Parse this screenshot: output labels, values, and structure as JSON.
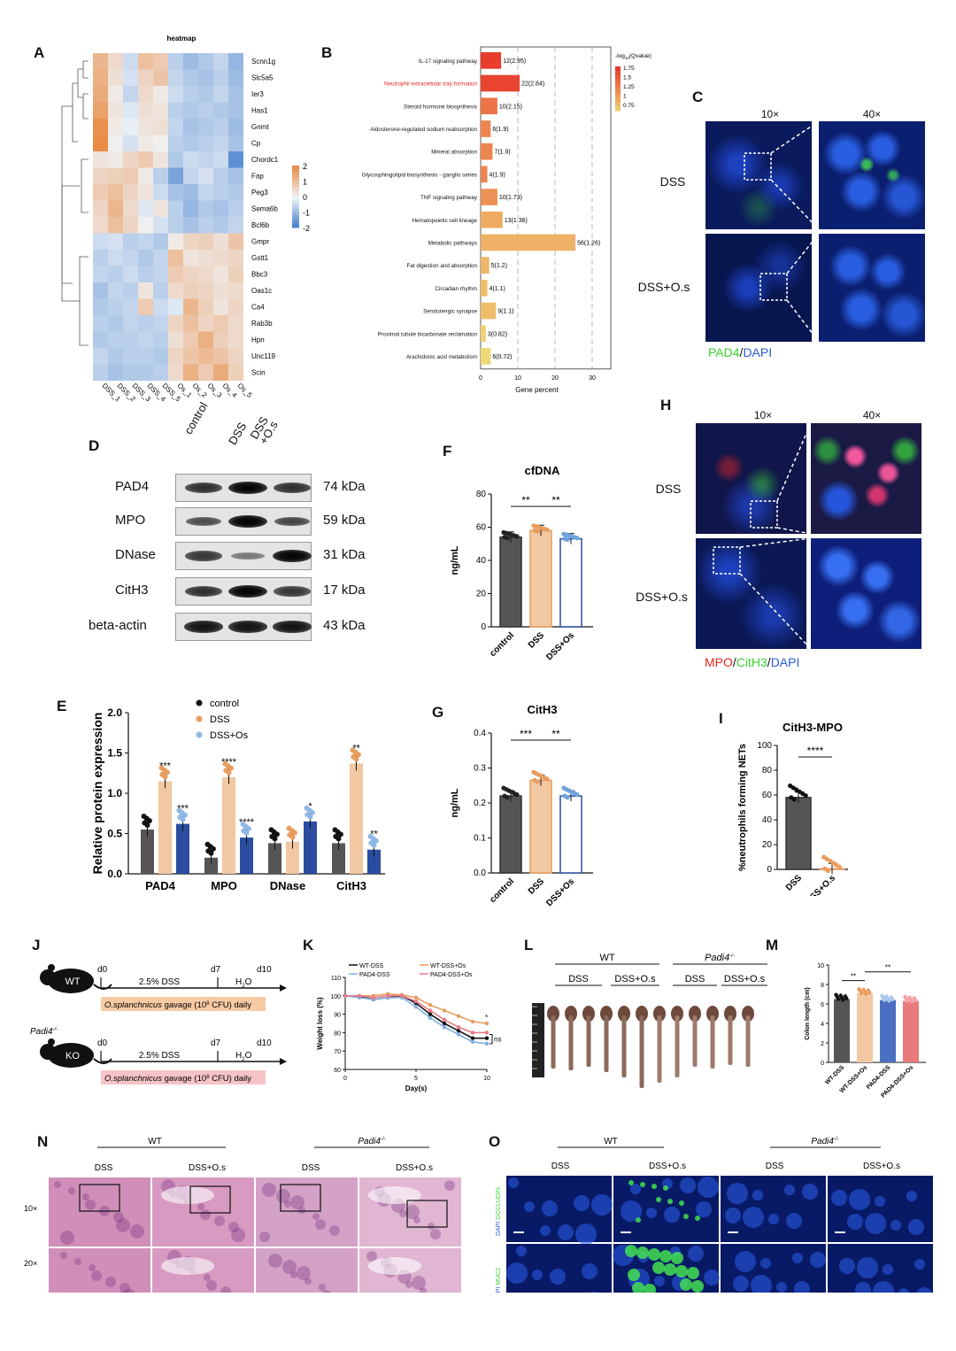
{
  "panels": {
    "A": "A",
    "B": "B",
    "C": "C",
    "D": "D",
    "E": "E",
    "F": "F",
    "G": "G",
    "H": "H",
    "I": "I",
    "J": "J",
    "K": "K",
    "L": "L",
    "M": "M",
    "N": "N",
    "O": "O"
  },
  "heatmap": {
    "title": "heatmap",
    "genes": [
      "Scnn1g",
      "Slc5a5",
      "Ier3",
      "Has1",
      "Gnmt",
      "Cp",
      "Chordc1",
      "Fap",
      "Peg3",
      "Sema6b",
      "Bcl6b",
      "Gmpr",
      "Gstt1",
      "Bbc3",
      "Oas1c",
      "Ca4",
      "Rab3b",
      "Hpn",
      "Unc119",
      "Scin"
    ],
    "samples": [
      "DSS_1",
      "DSS_2",
      "DSS_3",
      "DSS_4",
      "DSS_5",
      "Os_1",
      "Os_2",
      "Os_3",
      "Os_4",
      "Os_5"
    ],
    "legend_ticks": [
      "2",
      "1",
      "0",
      "-1",
      "-2"
    ],
    "values": [
      [
        1.2,
        0.5,
        -0.4,
        1.0,
        0.8,
        -0.6,
        -0.9,
        -0.7,
        -0.5,
        -1.0
      ],
      [
        1.3,
        0.4,
        -0.3,
        0.6,
        0.9,
        -0.5,
        -0.7,
        -0.8,
        -0.6,
        -0.9
      ],
      [
        1.4,
        0.2,
        -0.5,
        0.5,
        0.2,
        -0.4,
        -0.6,
        -0.7,
        -0.5,
        -0.8
      ],
      [
        1.6,
        0.3,
        -0.2,
        0.4,
        0.3,
        -0.6,
        -0.7,
        -0.6,
        -0.7,
        -0.8
      ],
      [
        1.9,
        0.2,
        -0.1,
        0.3,
        0.4,
        -0.5,
        -0.8,
        -0.7,
        -0.6,
        -0.9
      ],
      [
        2.0,
        0.1,
        -0.3,
        0.2,
        0.1,
        -0.6,
        -0.7,
        -0.6,
        -0.5,
        -0.8
      ],
      [
        0.3,
        0.2,
        0.6,
        0.8,
        0.3,
        -0.7,
        -0.4,
        -0.5,
        -0.4,
        -1.6
      ],
      [
        0.6,
        0.7,
        0.8,
        0.2,
        -0.6,
        -1.3,
        -0.5,
        -0.3,
        -0.6,
        -0.8
      ],
      [
        0.8,
        1.0,
        0.6,
        0.3,
        -0.4,
        -0.8,
        -0.9,
        -0.5,
        -0.6,
        -0.7
      ],
      [
        0.6,
        1.2,
        0.5,
        -0.2,
        0.3,
        -0.6,
        -1.0,
        -0.7,
        -0.8,
        -0.6
      ],
      [
        0.5,
        1.0,
        0.6,
        0.1,
        -0.3,
        -0.6,
        -0.8,
        -0.6,
        -0.7,
        -0.5
      ],
      [
        -0.4,
        -0.3,
        -0.6,
        -0.5,
        -0.7,
        0.2,
        0.6,
        0.7,
        0.4,
        0.9
      ],
      [
        -0.6,
        -0.4,
        -0.5,
        -0.7,
        -0.5,
        1.0,
        0.3,
        0.4,
        0.5,
        0.6
      ],
      [
        -0.5,
        -0.6,
        -0.4,
        -0.6,
        -0.5,
        0.8,
        0.6,
        0.5,
        0.3,
        0.7
      ],
      [
        -0.8,
        -0.5,
        -0.6,
        0.3,
        -0.6,
        0.5,
        0.7,
        0.6,
        0.4,
        0.5
      ],
      [
        -0.7,
        -0.6,
        -0.5,
        0.8,
        -0.4,
        -0.2,
        1.2,
        0.7,
        0.3,
        0.6
      ],
      [
        -0.6,
        -0.7,
        -0.5,
        -0.6,
        -0.5,
        0.6,
        1.0,
        0.6,
        0.8,
        0.5
      ],
      [
        -0.7,
        -0.6,
        -0.6,
        -0.5,
        -0.6,
        0.4,
        0.8,
        1.3,
        0.7,
        0.5
      ],
      [
        -0.5,
        -0.7,
        -0.6,
        -0.6,
        -0.7,
        0.6,
        0.9,
        1.1,
        0.9,
        0.6
      ],
      [
        -0.6,
        -0.8,
        -0.7,
        -0.7,
        -0.6,
        0.5,
        1.3,
        0.8,
        1.4,
        0.7
      ]
    ]
  },
  "kegg": {
    "legend_title": "-log",
    "legend_sub": "10",
    "legend_title2": "(Qvalue)",
    "legend_ticks": [
      "1.75",
      "1.5",
      "1.25",
      "1",
      "0.75"
    ],
    "xlabel": "Gene percent",
    "xticks": [
      "0",
      "10",
      "20",
      "30"
    ],
    "pathways": [
      {
        "name": "IL-17 signaling pathway",
        "label": "12(2.95)",
        "value": 5.5,
        "q": 2.95,
        "highlight": false
      },
      {
        "name": "Neutrophil extracellular trap formation",
        "label": "22(2.84)",
        "value": 10.5,
        "q": 2.84,
        "highlight": true
      },
      {
        "name": "Steroid hormone biosynthesis",
        "label": "10(2.15)",
        "value": 4.5,
        "q": 2.15,
        "highlight": false
      },
      {
        "name": "Aldosterone-regulated sodium reabsorption",
        "label": "6(1.9)",
        "value": 2.7,
        "q": 1.9,
        "highlight": false
      },
      {
        "name": "Mineral absorption",
        "label": "7(1.9)",
        "value": 3.2,
        "q": 1.9,
        "highlight": false
      },
      {
        "name": "Glycosphingolipid biosynthesis - ganglio series",
        "label": "4(1.9)",
        "value": 1.8,
        "q": 1.9,
        "highlight": false
      },
      {
        "name": "TNF signaling pathway",
        "label": "10(1.73)",
        "value": 4.5,
        "q": 1.73,
        "highlight": false
      },
      {
        "name": "Hematopoietic cell lineage",
        "label": "13(1.36)",
        "value": 5.9,
        "q": 1.36,
        "highlight": false
      },
      {
        "name": "Metabolic pathways",
        "label": "56(1.26)",
        "value": 25.5,
        "q": 1.26,
        "highlight": false
      },
      {
        "name": "Fat digestion and absorption",
        "label": "5(1.2)",
        "value": 2.3,
        "q": 1.2,
        "highlight": false
      },
      {
        "name": "Circadian rhythm",
        "label": "4(1.1)",
        "value": 1.8,
        "q": 1.1,
        "highlight": false
      },
      {
        "name": "Serotonergic synapse",
        "label": "9(1.1)",
        "value": 4.1,
        "q": 1.1,
        "highlight": false
      },
      {
        "name": "Proximal tubule bicarbonate reclamation",
        "label": "3(0.82)",
        "value": 1.4,
        "q": 0.82,
        "highlight": false
      },
      {
        "name": "Arachidonic acid metabolism",
        "label": "6(0.72)",
        "value": 2.7,
        "q": 0.72,
        "highlight": false
      }
    ]
  },
  "panelC": {
    "col1": "10×",
    "col2": "40×",
    "row1": "DSS",
    "row2": "DSS+O.s",
    "stain1": "PAD4",
    "sep": "/",
    "stain2": "DAPI"
  },
  "panelD": {
    "lanes": [
      "control",
      "DSS",
      "DSS\n+O.s"
    ],
    "rows": [
      {
        "name": "PAD4",
        "kda": "74 kDa",
        "band": [
          0.7,
          1.0,
          0.7
        ]
      },
      {
        "name": "MPO",
        "kda": "59 kDa",
        "band": [
          0.5,
          1.0,
          0.55
        ]
      },
      {
        "name": "DNase",
        "kda": "31 kDa",
        "band": [
          0.65,
          0.2,
          1.0
        ]
      },
      {
        "name": "CitH3",
        "kda": "17 kDa",
        "band": [
          0.7,
          1.0,
          0.65
        ]
      },
      {
        "name": "beta-actin",
        "kda": "43 kDa",
        "band": [
          0.9,
          0.9,
          0.9
        ]
      }
    ]
  },
  "panelF": {
    "title": "cfDNA",
    "ylabel": "ng/mL",
    "yticks": [
      "0",
      "20",
      "40",
      "60",
      "80"
    ],
    "groups": [
      "control",
      "DSS",
      "DSS+Os"
    ],
    "values": [
      54,
      58,
      53
    ],
    "sig": [
      "**",
      "**"
    ]
  },
  "panelE": {
    "ylabel": "Relative protein expression",
    "yticks": [
      "0.0",
      "0.5",
      "1.0",
      "1.5",
      "2.0"
    ],
    "legend": [
      "control",
      "DSS",
      "DSS+Os"
    ],
    "categories": [
      "PAD4",
      "MPO",
      "DNase",
      "CitH3"
    ],
    "values": [
      [
        0.55,
        1.15,
        0.62
      ],
      [
        0.2,
        1.2,
        0.45
      ],
      [
        0.38,
        0.4,
        0.65
      ],
      [
        0.38,
        1.37,
        0.3
      ]
    ],
    "sig": [
      [
        "",
        "***",
        "***"
      ],
      [
        "",
        "****",
        "****"
      ],
      [
        "",
        "",
        "*"
      ],
      [
        "",
        "**",
        "**"
      ]
    ]
  },
  "panelG": {
    "title": "CitH3",
    "ylabel": "ng/mL",
    "yticks": [
      "0.0",
      "0.1",
      "0.2",
      "0.3",
      "0.4"
    ],
    "groups": [
      "control",
      "DSS",
      "DSS+Os"
    ],
    "values": [
      0.22,
      0.265,
      0.22
    ],
    "sig": [
      "***",
      "**"
    ]
  },
  "panelH": {
    "col1": "10×",
    "col2": "40×",
    "row1": "DSS",
    "row2": "DSS+O.s",
    "stain1": "MPO",
    "stain2": "CitH3",
    "stain3": "DAPI",
    "sep": "/"
  },
  "panelI": {
    "title": "CitH3-MPO",
    "ylabel": "%neutrophils forming NETs",
    "yticks": [
      "0",
      "20",
      "40",
      "60",
      "80",
      "100"
    ],
    "groups": [
      "DSS",
      "DSS+O.s"
    ],
    "values": [
      58,
      0.5
    ],
    "sig": "****"
  },
  "panelJ": {
    "wt": "WT",
    "ko": "KO",
    "ko_label": "Padi4",
    "d0": "d0",
    "d7": "d7",
    "d10": "d10",
    "dss": "2.5% DSS",
    "h2o": "H",
    "h2o_sub": "2",
    "h2o_end": "O",
    "gavage_pre": "O.splanchnicus",
    "gavage_post": " gavage (10",
    "gavage_exp": "8",
    "gavage_end": " CFU) daily"
  },
  "panelK": {
    "ylabel": "Weight loss (%)",
    "xlabel": "Day(s)",
    "yticks": [
      "60",
      "70",
      "80",
      "90",
      "100",
      "110"
    ],
    "xticks": [
      "0",
      "5",
      "10"
    ],
    "legend": [
      "WT-DSS",
      "WT-DSS+Os",
      "PAD4-DSS",
      "PAD4-DSS+Os"
    ],
    "ns": "ns",
    "star": "*",
    "series": [
      {
        "name": "WT-DSS",
        "values": [
          100,
          99.5,
          98,
          99,
          100,
          96,
          90,
          85,
          81,
          77,
          77
        ]
      },
      {
        "name": "WT-DSS+Os",
        "values": [
          100,
          100,
          100,
          101,
          100.5,
          99,
          95,
          92,
          89,
          86,
          85
        ]
      },
      {
        "name": "PAD4-DSS",
        "values": [
          100,
          99,
          98,
          99,
          99,
          94,
          88,
          83,
          79,
          75,
          74
        ]
      },
      {
        "name": "PAD4-DSS+Os",
        "values": [
          100,
          100,
          99,
          100,
          100,
          97,
          92,
          87,
          83,
          80,
          80
        ]
      }
    ]
  },
  "panelL": {
    "wt": "WT",
    "ko": "Padi4",
    "dss": "DSS",
    "dssos": "DSS+O.s"
  },
  "panelM": {
    "ylabel": "Colon length (cm)",
    "yticks": [
      "0",
      "2",
      "4",
      "6",
      "8",
      "10"
    ],
    "groups": [
      "WT-DSS",
      "WT-DSS+Os",
      "PAD4-DSS",
      "PAD4-DSS+Os"
    ],
    "values": [
      6.5,
      7.1,
      6.4,
      6.3
    ],
    "sig": [
      "**",
      "**"
    ]
  },
  "panelN": {
    "wt": "WT",
    "ko": "Padi4",
    "dss": "DSS",
    "dssos": "DSS+O.s",
    "row1": "10×",
    "row2": "20×"
  },
  "panelO": {
    "wt": "WT",
    "ko": "Padi4",
    "dss": "DSS",
    "dssos": "DSS+O.s",
    "stain_row1_dapi": "DAPI",
    "stain_row1": "OCCLUDIN",
    "stain_row2_dapi": "DAPI",
    "stain_row2": "MUC2"
  },
  "colors": {
    "control": "#555555",
    "dss": "#f2c8a2",
    "dssos": "#2a4da0",
    "red": "#e3261f",
    "green": "#3bd12f",
    "blue": "#2a5bd8"
  }
}
